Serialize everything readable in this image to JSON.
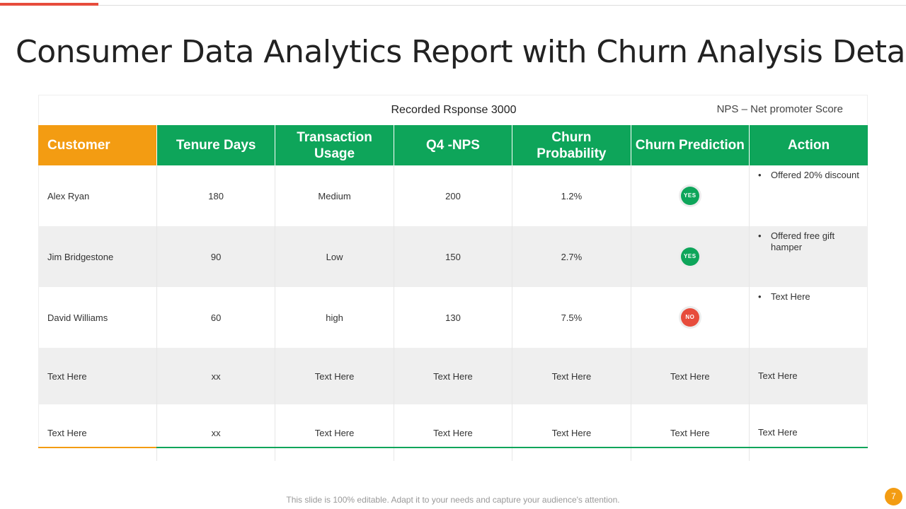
{
  "title": "Consumer Data Analytics Report with Churn Analysis Details",
  "recorded_response": "Recorded Rsponse 3000",
  "nps_note": "NPS – Net promoter Score",
  "columns": [
    "Customer",
    "Tenure Days",
    "Transaction Usage",
    "Q4 -NPS",
    "Churn Probability",
    "Churn Prediction",
    "Action"
  ],
  "rows": [
    {
      "customer": "Alex Ryan",
      "tenure": "180",
      "usage": "Medium",
      "nps": "200",
      "probability": "1.2%",
      "prediction": "YES",
      "action": "Offered  20% discount"
    },
    {
      "customer": "Jim Bridgestone",
      "tenure": "90",
      "usage": "Low",
      "nps": "150",
      "probability": "2.7%",
      "prediction": "YES",
      "action": "Offered  free  gift hamper"
    },
    {
      "customer": "David  Williams",
      "tenure": "60",
      "usage": "high",
      "nps": "130",
      "probability": "7.5%",
      "prediction": "NO",
      "action": "Text Here"
    },
    {
      "customer": "Text Here",
      "tenure": "xx",
      "usage": "Text Here",
      "nps": "Text Here",
      "probability": "Text Here",
      "prediction": "Text Here",
      "action": "Text Here"
    },
    {
      "customer": "Text Here",
      "tenure": "xx",
      "usage": "Text Here",
      "nps": "Text Here",
      "probability": "Text Here",
      "prediction": "Text Here",
      "action": "Text Here"
    }
  ],
  "bullet_char": "•",
  "footer": "This slide is 100% editable. Adapt it to your needs and capture your audience's attention.",
  "page_number": "7",
  "colors": {
    "green": "#0ea55a",
    "orange": "#f39c12",
    "red": "#e74c3c"
  }
}
